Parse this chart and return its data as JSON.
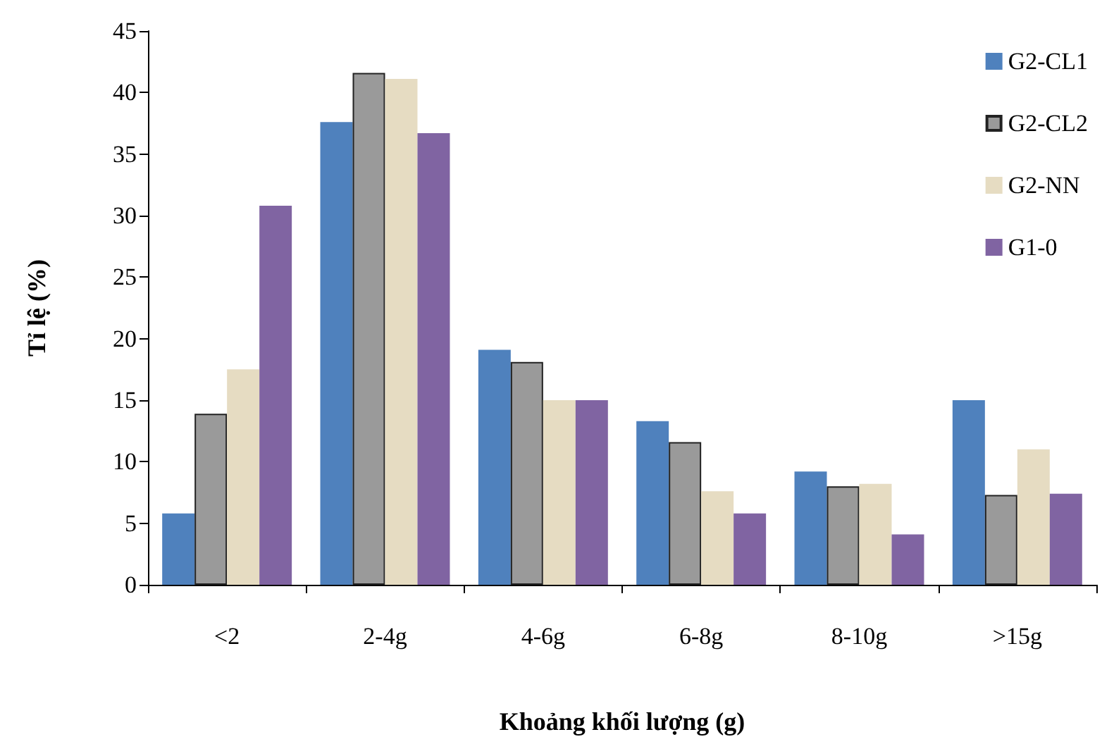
{
  "chart_data": {
    "type": "bar",
    "xlabel": "Khoảng khối lượng (g)",
    "ylabel": "Tỉ lệ (%)",
    "categories": [
      "<2",
      "2-4g",
      "4-6g",
      "6-8g",
      "8-10g",
      ">15g"
    ],
    "series": [
      {
        "name": "G2-CL1",
        "color": "#4f81bd",
        "values": [
          5.8,
          37.6,
          19.1,
          13.3,
          9.2,
          15.0
        ]
      },
      {
        "name": "G2-CL2",
        "color": "#9a9a9a",
        "values": [
          13.9,
          41.6,
          18.1,
          11.6,
          8.0,
          7.3
        ]
      },
      {
        "name": "G2-NN",
        "color": "#e6dcc2",
        "values": [
          17.5,
          41.1,
          15.0,
          7.6,
          8.2,
          11.0
        ]
      },
      {
        "name": "G1-0",
        "color": "#8064a2",
        "values": [
          30.8,
          36.7,
          15.0,
          5.8,
          4.1,
          7.4
        ]
      }
    ],
    "ylim": [
      0,
      45
    ],
    "yticks": [
      0,
      5,
      10,
      15,
      20,
      25,
      30,
      35,
      40,
      45
    ],
    "grid": false,
    "legend": "top right"
  }
}
